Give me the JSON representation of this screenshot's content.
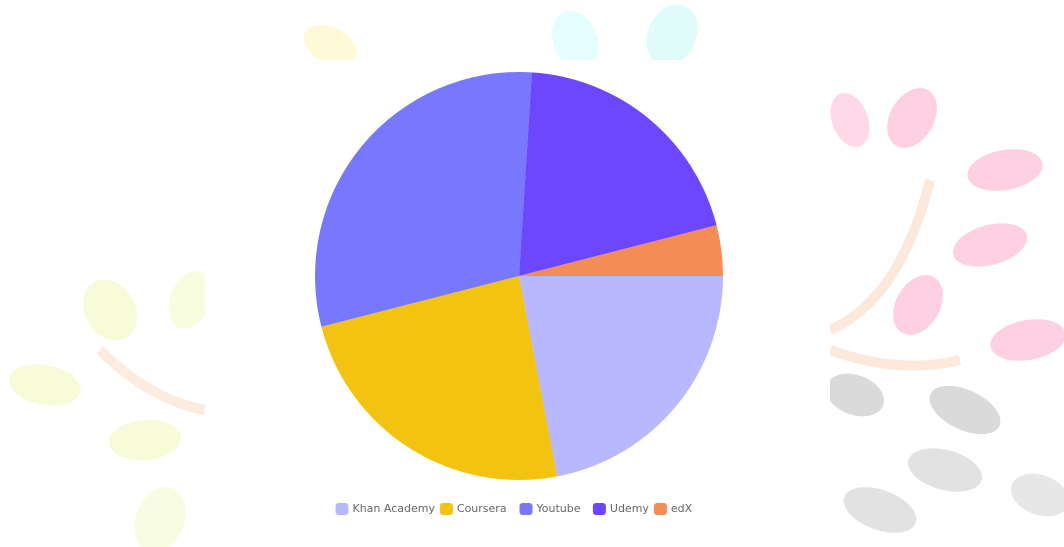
{
  "chart_data": {
    "type": "pie",
    "categories": [
      "Khan Academy",
      "Coursera",
      "Youtube",
      "Udemy",
      "edX"
    ],
    "values": [
      22,
      24,
      30,
      20,
      4
    ],
    "colors": [
      "#b8b8ff",
      "#f2c311",
      "#7878ff",
      "#6c47ff",
      "#f48c55"
    ],
    "legend": "bottom"
  }
}
